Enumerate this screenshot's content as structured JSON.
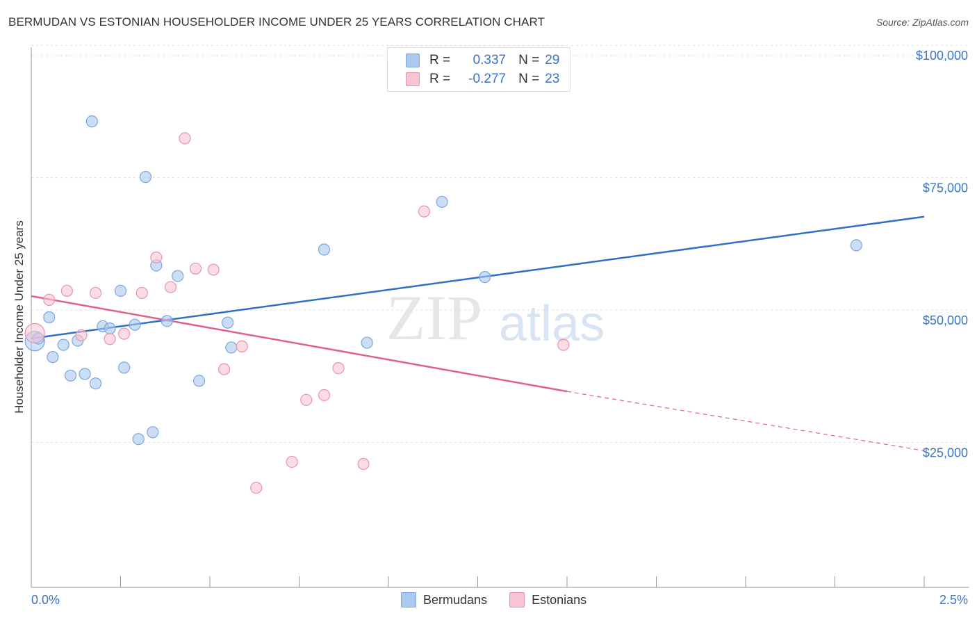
{
  "title": "BERMUDAN VS ESTONIAN HOUSEHOLDER INCOME UNDER 25 YEARS CORRELATION CHART",
  "source": "Source: ZipAtlas.com",
  "watermark": {
    "zip": "ZIP",
    "atlas": "atlas"
  },
  "legend": {
    "r_label": "R =",
    "n_label": "N =",
    "rows": [
      {
        "r": "0.337",
        "n": "29",
        "color": "#aac8f0",
        "border": "#7aa6dc"
      },
      {
        "r": "-0.277",
        "n": "23",
        "color": "#f8c4d4",
        "border": "#e893ad"
      }
    ]
  },
  "bottom_legend": [
    "Bermudans",
    "Estonians"
  ],
  "chart_data": {
    "type": "scatter",
    "title": "BERMUDAN VS ESTONIAN HOUSEHOLDER INCOME UNDER 25 YEARS CORRELATION CHART",
    "ylabel": "Householder Income Under 25 years",
    "xlabel": "",
    "xlim": [
      0.0,
      2.5
    ],
    "ylim": [
      0,
      102000
    ],
    "x_tick_labels": [
      "0.0%",
      "2.5%"
    ],
    "y_ticks": [
      25000,
      50000,
      75000,
      100000
    ],
    "y_tick_labels": [
      "$25,000",
      "$50,000",
      "$75,000",
      "$100,000"
    ],
    "grid": true,
    "series": [
      {
        "name": "Bermudans",
        "color": "#aac8f0",
        "stroke": "#7aa6dc",
        "line_color": "#2f6fcc",
        "trend": {
          "x": [
            0.0,
            2.5
          ],
          "y": [
            47000,
            70000
          ]
        },
        "points": [
          [
            0.01,
            46500
          ],
          [
            0.02,
            47000
          ],
          [
            0.05,
            51000
          ],
          [
            0.06,
            43500
          ],
          [
            0.09,
            45800
          ],
          [
            0.11,
            40000
          ],
          [
            0.13,
            46600
          ],
          [
            0.15,
            40300
          ],
          [
            0.17,
            88000
          ],
          [
            0.18,
            38500
          ],
          [
            0.2,
            49300
          ],
          [
            0.22,
            48900
          ],
          [
            0.25,
            56000
          ],
          [
            0.26,
            41500
          ],
          [
            0.29,
            49600
          ],
          [
            0.3,
            28000
          ],
          [
            0.32,
            77500
          ],
          [
            0.34,
            29300
          ],
          [
            0.35,
            60800
          ],
          [
            0.38,
            50300
          ],
          [
            0.41,
            58800
          ],
          [
            0.47,
            39000
          ],
          [
            0.55,
            50000
          ],
          [
            0.56,
            45300
          ],
          [
            0.82,
            63800
          ],
          [
            0.94,
            46200
          ],
          [
            1.15,
            72800
          ],
          [
            1.27,
            58600
          ],
          [
            2.31,
            64600
          ]
        ]
      },
      {
        "name": "Estonians",
        "color": "#f8c4d4",
        "stroke": "#e893ad",
        "line_color": "#e0608a",
        "trend": {
          "x": [
            0.0,
            1.5
          ],
          "y": [
            55000,
            37000
          ]
        },
        "trend_dashed": {
          "x": [
            1.5,
            2.5
          ],
          "y": [
            37000,
            25800
          ]
        },
        "points": [
          [
            0.01,
            48000
          ],
          [
            0.05,
            54300
          ],
          [
            0.1,
            56000
          ],
          [
            0.14,
            47600
          ],
          [
            0.18,
            55600
          ],
          [
            0.22,
            46900
          ],
          [
            0.26,
            47900
          ],
          [
            0.31,
            55600
          ],
          [
            0.35,
            62300
          ],
          [
            0.39,
            56700
          ],
          [
            0.43,
            84800
          ],
          [
            0.46,
            60200
          ],
          [
            0.51,
            60000
          ],
          [
            0.54,
            41200
          ],
          [
            0.59,
            45500
          ],
          [
            0.63,
            18800
          ],
          [
            0.73,
            23700
          ],
          [
            0.77,
            35400
          ],
          [
            0.82,
            36300
          ],
          [
            0.86,
            41400
          ],
          [
            0.93,
            23300
          ],
          [
            1.1,
            71000
          ],
          [
            1.49,
            45800
          ]
        ]
      }
    ]
  }
}
